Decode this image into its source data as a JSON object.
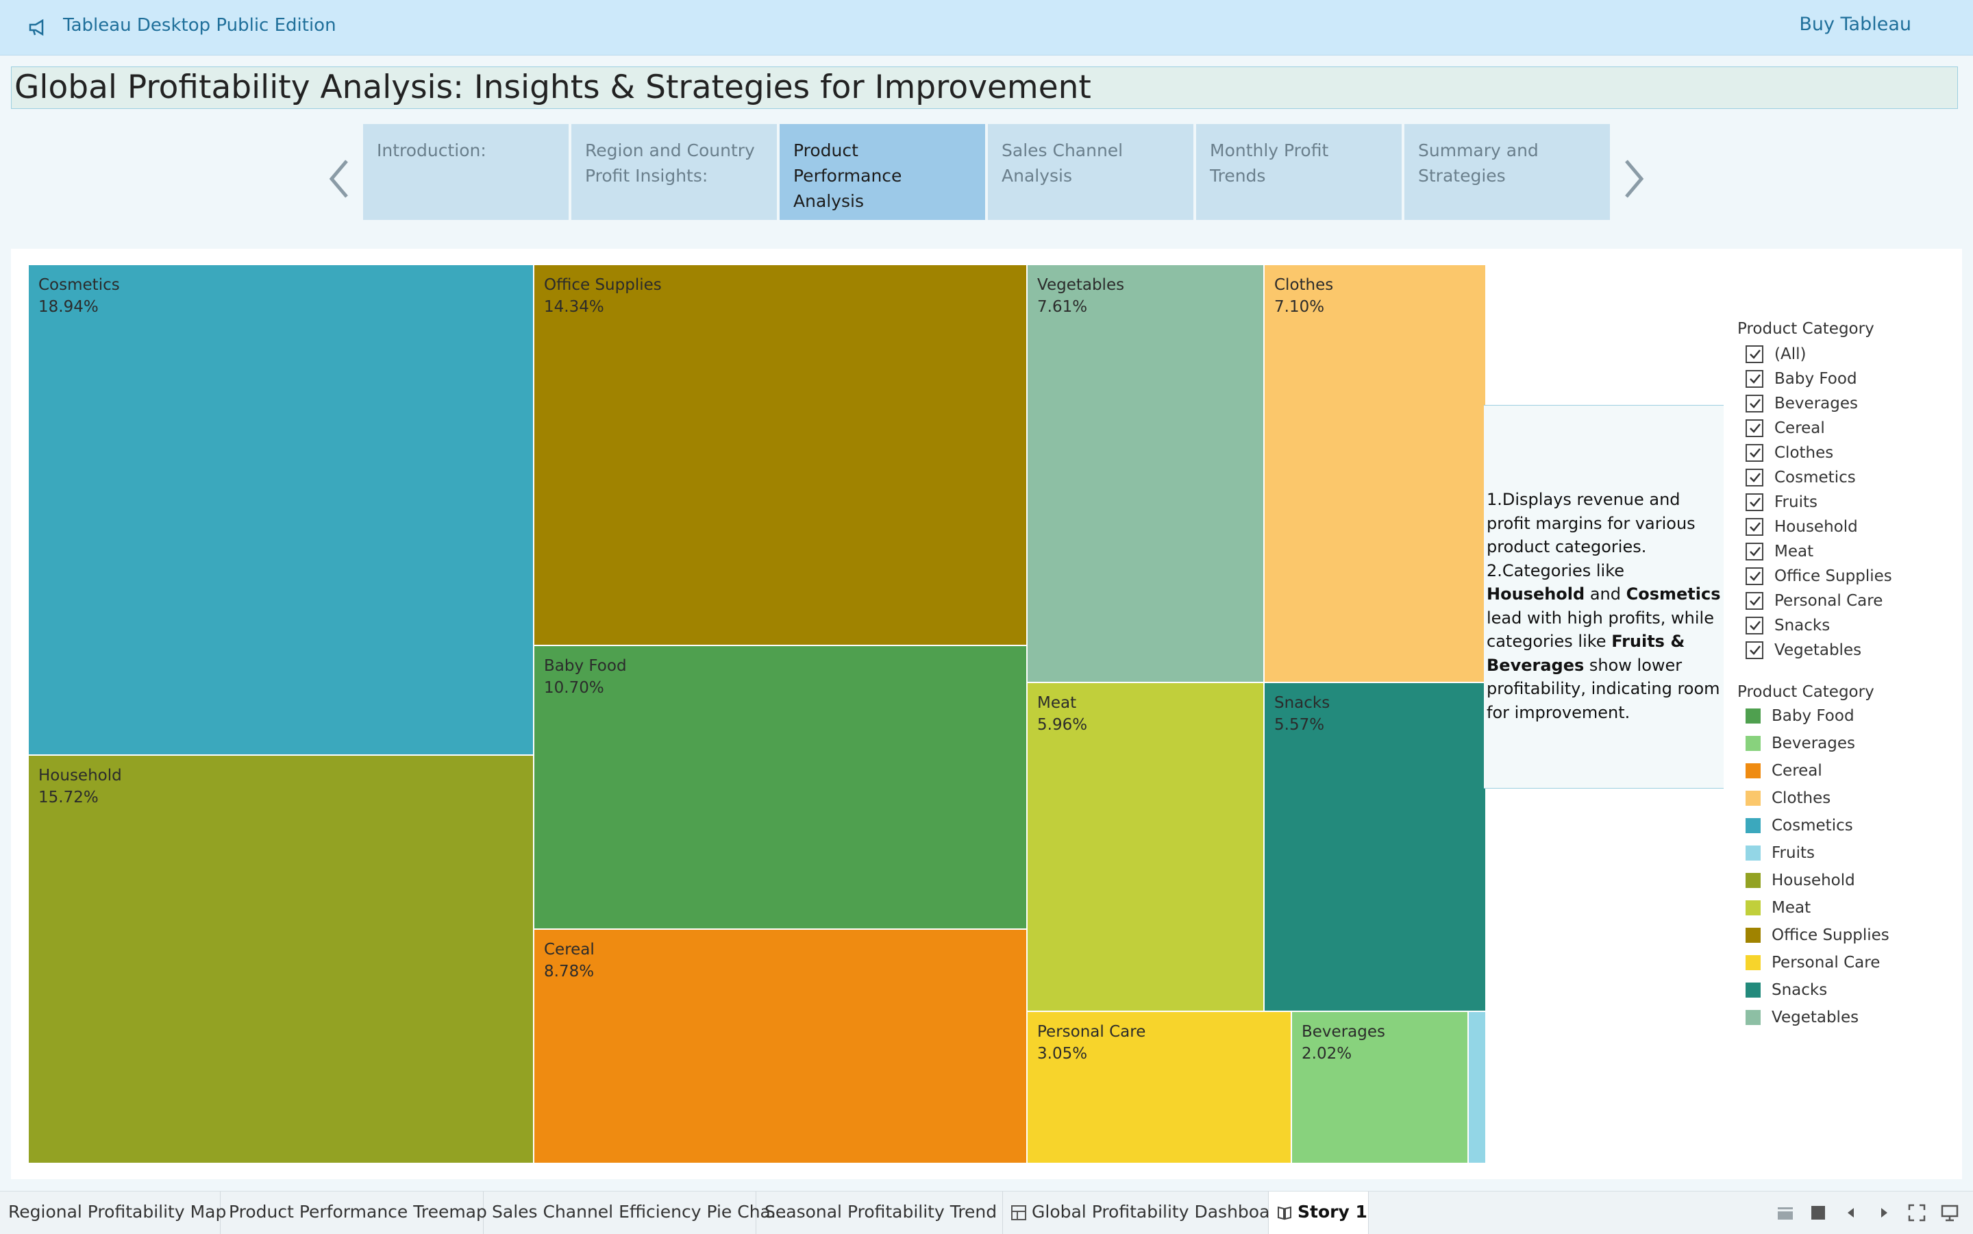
{
  "app": {
    "title": "Tableau Desktop Public Edition",
    "buy_label": "Buy Tableau"
  },
  "story": {
    "title": "Global Profitability Analysis: Insights & Strategies for Improvement",
    "points": [
      {
        "label": "Introduction:",
        "active": false
      },
      {
        "label": "Region and Country Profit Insights:",
        "active": false
      },
      {
        "label": "Product Performance Analysis",
        "active": true
      },
      {
        "label": "Sales Channel Analysis",
        "active": false
      },
      {
        "label": "Monthly Profit Trends",
        "active": false
      },
      {
        "label": "Summary and Strategies",
        "active": false
      }
    ]
  },
  "chart_data": {
    "type": "treemap",
    "items": [
      {
        "name": "Cosmetics",
        "value": "18.94%",
        "color": "#3ba8bd"
      },
      {
        "name": "Household",
        "value": "15.72%",
        "color": "#93a223"
      },
      {
        "name": "Office Supplies",
        "value": "14.34%",
        "color": "#a08300"
      },
      {
        "name": "Baby Food",
        "value": "10.70%",
        "color": "#4fa04f"
      },
      {
        "name": "Cereal",
        "value": "8.78%",
        "color": "#ef8b11"
      },
      {
        "name": "Vegetables",
        "value": "7.61%",
        "color": "#8dbfa4"
      },
      {
        "name": "Clothes",
        "value": "7.10%",
        "color": "#fbc76b"
      },
      {
        "name": "Meat",
        "value": "5.96%",
        "color": "#c1cf3b"
      },
      {
        "name": "Snacks",
        "value": "5.57%",
        "color": "#238a7c"
      },
      {
        "name": "Personal Care",
        "value": "3.05%",
        "color": "#f7d42b"
      },
      {
        "name": "Beverages",
        "value": "2.02%",
        "color": "#88d27d"
      },
      {
        "name": "Fruits",
        "value": "",
        "color": "#93d6e6"
      }
    ]
  },
  "annotation": {
    "line1": "1.Displays revenue and profit margins for various product categories.",
    "line2_pre": "2.Categories like ",
    "bold1": "Household",
    "and": " and ",
    "bold2": "Cosmetics",
    "line2_mid": " lead with high profits, while categories like ",
    "bold3": "Fruits & Beverages",
    "line2_post": " show lower profitability, indicating room for improvement."
  },
  "filter": {
    "title": "Product Category",
    "options": [
      "(All)",
      "Baby Food",
      "Beverages",
      "Cereal",
      "Clothes",
      "Cosmetics",
      "Fruits",
      "Household",
      "Meat",
      "Office Supplies",
      "Personal Care",
      "Snacks",
      "Vegetables"
    ]
  },
  "legend": {
    "title": "Product Category",
    "items": [
      {
        "label": "Baby Food",
        "color": "#4fa04f"
      },
      {
        "label": "Beverages",
        "color": "#88d27d"
      },
      {
        "label": "Cereal",
        "color": "#ef8b11"
      },
      {
        "label": "Clothes",
        "color": "#fbc76b"
      },
      {
        "label": "Cosmetics",
        "color": "#3ba8bd"
      },
      {
        "label": "Fruits",
        "color": "#93d6e6"
      },
      {
        "label": "Household",
        "color": "#93a223"
      },
      {
        "label": "Meat",
        "color": "#c1cf3b"
      },
      {
        "label": "Office Supplies",
        "color": "#a08300"
      },
      {
        "label": "Personal Care",
        "color": "#f7d42b"
      },
      {
        "label": "Snacks",
        "color": "#238a7c"
      },
      {
        "label": "Vegetables",
        "color": "#8dbfa4"
      }
    ]
  },
  "tabs": [
    {
      "label": "Regional Profitability Map",
      "icon": "",
      "active": false
    },
    {
      "label": "Product Performance Treemap",
      "icon": "",
      "active": false
    },
    {
      "label": "Sales Channel Efficiency Pie Cha...",
      "icon": "",
      "active": false
    },
    {
      "label": "Seasonal Profitability Trend",
      "icon": "",
      "active": false
    },
    {
      "label": "Global Profitability Dashboard",
      "icon": "dashboard-icon",
      "active": false
    },
    {
      "label": "Story 1",
      "icon": "story-icon",
      "active": true
    }
  ]
}
